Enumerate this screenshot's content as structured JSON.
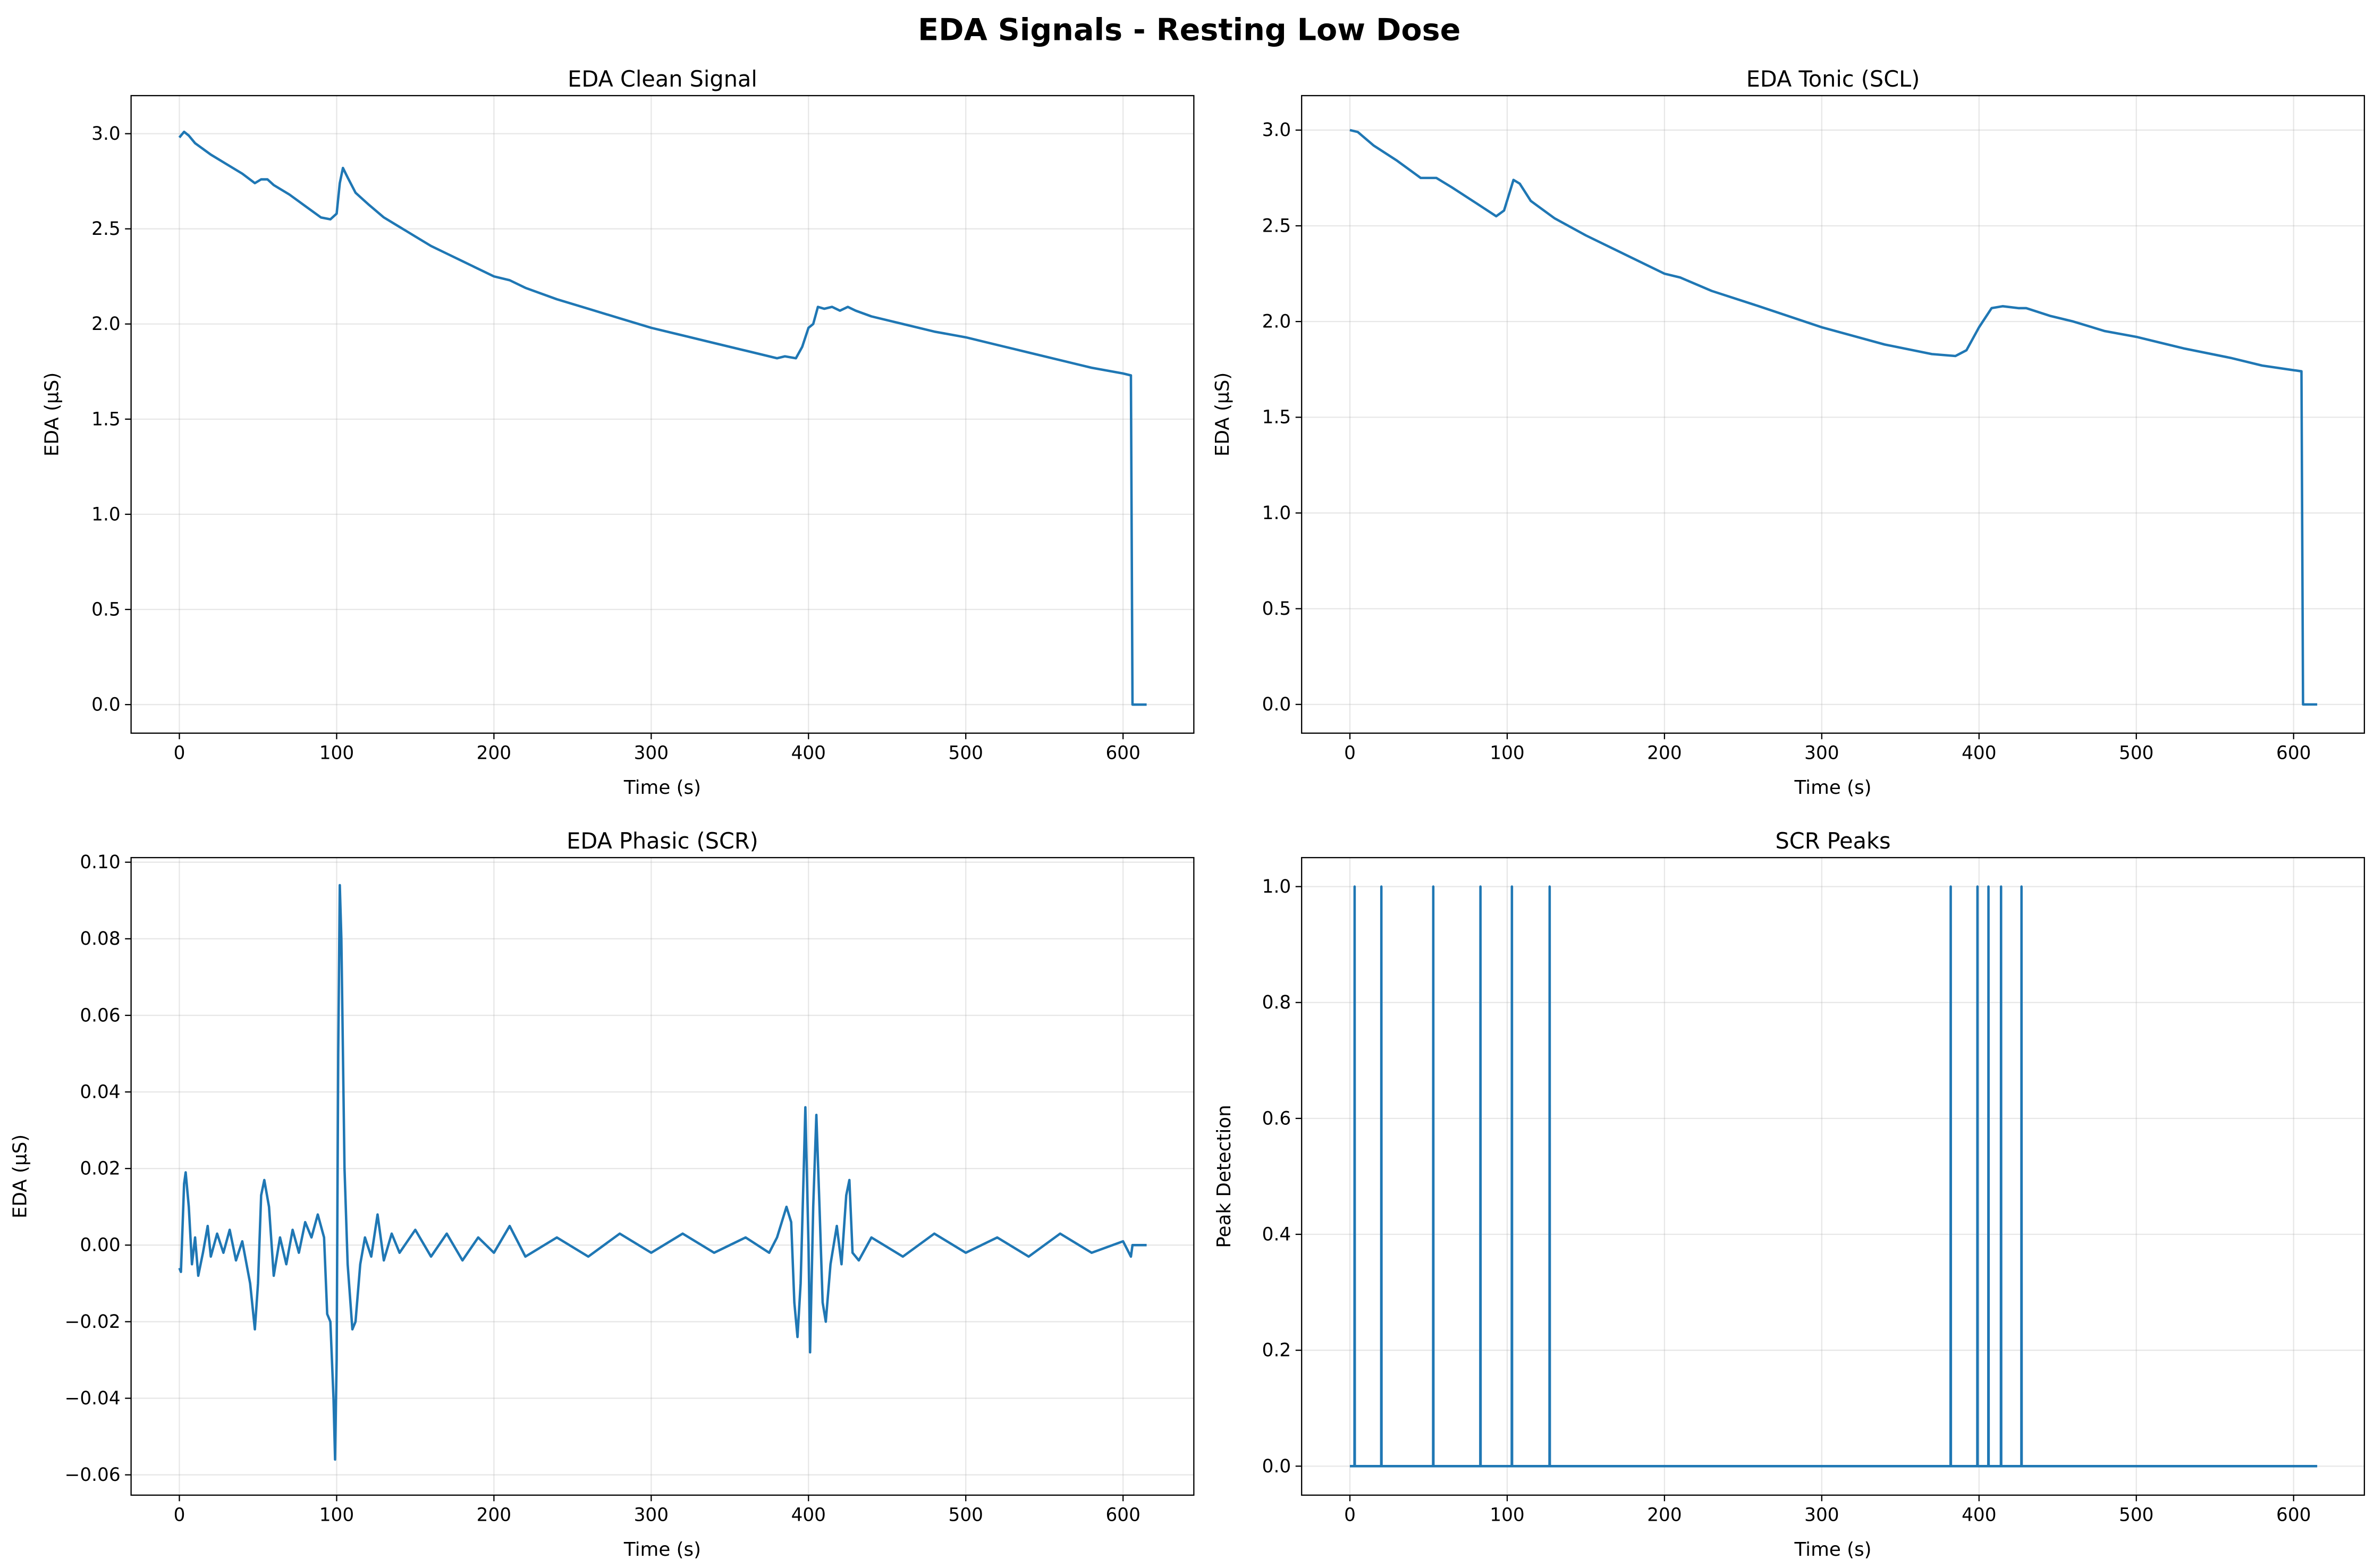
{
  "title": "EDA Signals - Resting Low Dose",
  "chart_data": [
    {
      "type": "line",
      "title": "EDA Clean Signal",
      "xlabel": "Time (s)",
      "ylabel": "EDA (µS)",
      "color": "#1f77b4",
      "grid": true,
      "x": [
        0,
        3,
        6,
        10,
        20,
        30,
        40,
        48,
        52,
        56,
        60,
        70,
        80,
        90,
        96,
        100,
        102,
        104,
        107,
        112,
        120,
        130,
        140,
        150,
        160,
        170,
        180,
        190,
        200,
        210,
        220,
        240,
        260,
        280,
        300,
        320,
        340,
        360,
        375,
        380,
        385,
        392,
        396,
        400,
        403,
        406,
        410,
        415,
        420,
        425,
        430,
        440,
        460,
        480,
        500,
        520,
        540,
        560,
        580,
        600,
        605,
        606,
        615
      ],
      "values": [
        2.98,
        3.01,
        2.99,
        2.95,
        2.89,
        2.84,
        2.79,
        2.74,
        2.76,
        2.76,
        2.73,
        2.68,
        2.62,
        2.56,
        2.55,
        2.58,
        2.74,
        2.82,
        2.77,
        2.69,
        2.63,
        2.56,
        2.51,
        2.46,
        2.41,
        2.37,
        2.33,
        2.29,
        2.25,
        2.23,
        2.19,
        2.13,
        2.08,
        2.03,
        1.98,
        1.94,
        1.9,
        1.86,
        1.83,
        1.82,
        1.83,
        1.82,
        1.88,
        1.98,
        2.0,
        2.09,
        2.08,
        2.09,
        2.07,
        2.09,
        2.07,
        2.04,
        2.0,
        1.96,
        1.93,
        1.89,
        1.85,
        1.81,
        1.77,
        1.74,
        1.73,
        0,
        0
      ],
      "xlim": [
        -30.7,
        645
      ],
      "ylim": [
        -0.15,
        3.2
      ],
      "xticks": [
        0,
        100,
        200,
        300,
        400,
        500,
        600
      ],
      "yticks": [
        {
          "value": 0,
          "label": "0.0"
        },
        0.5,
        {
          "value": 1,
          "label": "1.0"
        },
        1.5,
        {
          "value": 2,
          "label": "2.0"
        },
        2.5,
        {
          "value": 3,
          "label": "3.0"
        }
      ]
    },
    {
      "type": "line",
      "title": "EDA Tonic (SCL)",
      "xlabel": "Time (s)",
      "ylabel": "EDA (µS)",
      "color": "#1f77b4",
      "grid": true,
      "x": [
        0,
        5,
        15,
        30,
        45,
        55,
        65,
        80,
        93,
        98,
        104,
        108,
        115,
        130,
        150,
        175,
        200,
        210,
        230,
        260,
        300,
        340,
        370,
        385,
        392,
        400,
        408,
        415,
        425,
        430,
        445,
        460,
        480,
        500,
        530,
        560,
        580,
        605,
        606,
        615
      ],
      "values": [
        3.0,
        2.99,
        2.92,
        2.84,
        2.75,
        2.75,
        2.7,
        2.62,
        2.55,
        2.58,
        2.74,
        2.72,
        2.63,
        2.54,
        2.45,
        2.35,
        2.25,
        2.23,
        2.16,
        2.08,
        1.97,
        1.88,
        1.83,
        1.82,
        1.85,
        1.97,
        2.07,
        2.08,
        2.07,
        2.07,
        2.03,
        2.0,
        1.95,
        1.92,
        1.86,
        1.81,
        1.77,
        1.74,
        0,
        0
      ],
      "xlim": [
        -30.7,
        645
      ],
      "ylim": [
        -0.15,
        3.18
      ],
      "xticks": [
        0,
        100,
        200,
        300,
        400,
        500,
        600
      ],
      "yticks": [
        {
          "value": 0,
          "label": "0.0"
        },
        0.5,
        {
          "value": 1,
          "label": "1.0"
        },
        1.5,
        {
          "value": 2,
          "label": "2.0"
        },
        2.5,
        {
          "value": 3,
          "label": "3.0"
        }
      ]
    },
    {
      "type": "line",
      "title": "EDA Phasic (SCR)",
      "xlabel": "Time (s)",
      "ylabel": "EDA (µS)",
      "color": "#1f77b4",
      "grid": true,
      "x": [
        0,
        1,
        3,
        4,
        6,
        8,
        10,
        12,
        15,
        18,
        20,
        24,
        28,
        32,
        36,
        40,
        45,
        48,
        50,
        52,
        54,
        57,
        60,
        64,
        68,
        72,
        76,
        80,
        84,
        88,
        92,
        94,
        96,
        98,
        99,
        100,
        101,
        102,
        103,
        105,
        107,
        110,
        112,
        115,
        118,
        122,
        126,
        130,
        135,
        140,
        150,
        160,
        170,
        180,
        190,
        200,
        210,
        220,
        240,
        260,
        280,
        300,
        320,
        340,
        360,
        375,
        380,
        386,
        389,
        391,
        393,
        395,
        397,
        398,
        400,
        401,
        403,
        405,
        407,
        409,
        411,
        414,
        418,
        421,
        424,
        426,
        428,
        432,
        440,
        460,
        480,
        500,
        520,
        540,
        560,
        580,
        600,
        605,
        606,
        615
      ],
      "values": [
        -0.006,
        -0.007,
        0.016,
        0.019,
        0.01,
        -0.005,
        0.002,
        -0.008,
        -0.002,
        0.005,
        -0.003,
        0.003,
        -0.002,
        0.004,
        -0.004,
        0.001,
        -0.01,
        -0.022,
        -0.01,
        0.013,
        0.017,
        0.01,
        -0.008,
        0.002,
        -0.005,
        0.004,
        -0.002,
        0.006,
        0.002,
        0.008,
        0.002,
        -0.018,
        -0.02,
        -0.04,
        -0.056,
        -0.03,
        0.05,
        0.094,
        0.08,
        0.02,
        -0.005,
        -0.022,
        -0.02,
        -0.005,
        0.002,
        -0.003,
        0.008,
        -0.004,
        0.003,
        -0.002,
        0.004,
        -0.003,
        0.003,
        -0.004,
        0.002,
        -0.002,
        0.005,
        -0.003,
        0.002,
        -0.003,
        0.003,
        -0.002,
        0.003,
        -0.002,
        0.002,
        -0.002,
        0.002,
        0.01,
        0.006,
        -0.015,
        -0.024,
        -0.01,
        0.02,
        0.036,
        0.0,
        -0.028,
        0.01,
        0.034,
        0.01,
        -0.015,
        -0.02,
        -0.005,
        0.005,
        -0.005,
        0.013,
        0.017,
        -0.002,
        -0.004,
        0.002,
        -0.003,
        0.003,
        -0.002,
        0.002,
        -0.003,
        0.003,
        -0.002,
        0.001,
        -0.003,
        0,
        0
      ],
      "xlim": [
        -30.7,
        645
      ],
      "ylim": [
        -0.0653,
        0.1012
      ],
      "xticks": [
        0,
        100,
        200,
        300,
        400,
        500,
        600
      ],
      "yticks": [
        {
          "value": -0.06,
          "label": "−0.06"
        },
        {
          "value": -0.04,
          "label": "−0.04"
        },
        {
          "value": -0.02,
          "label": "−0.02"
        },
        {
          "value": 0,
          "label": "0.00"
        },
        0.02,
        0.04,
        0.06,
        0.08,
        {
          "value": 0.1,
          "label": "0.10"
        }
      ]
    },
    {
      "type": "line",
      "title": "SCR Peaks",
      "xlabel": "Time (s)",
      "ylabel": "Peak Detection",
      "color": "#1f77b4",
      "grid": true,
      "x": [
        0,
        2.9,
        3,
        3.1,
        19.9,
        20,
        20.1,
        52.9,
        53,
        53.1,
        82.9,
        83,
        83.1,
        102.9,
        103,
        103.1,
        126.9,
        127,
        127.1,
        381.9,
        382,
        382.1,
        398.9,
        399,
        399.1,
        405.9,
        406,
        406.1,
        413.9,
        414,
        414.1,
        426.9,
        427,
        427.1,
        615
      ],
      "values": [
        0,
        0,
        1,
        0,
        0,
        1,
        0,
        0,
        1,
        0,
        0,
        1,
        0,
        0,
        1,
        0,
        0,
        1,
        0,
        0,
        1,
        0,
        0,
        1,
        0,
        0,
        1,
        0,
        0,
        1,
        0,
        0,
        1,
        0,
        0
      ],
      "xlim": [
        -30.7,
        645
      ],
      "ylim": [
        -0.05,
        1.05
      ],
      "xticks": [
        0,
        100,
        200,
        300,
        400,
        500,
        600
      ],
      "yticks": [
        {
          "value": 0,
          "label": "0.0"
        },
        0.2,
        0.4,
        0.6,
        0.8,
        {
          "value": 1,
          "label": "1.0"
        }
      ]
    }
  ]
}
